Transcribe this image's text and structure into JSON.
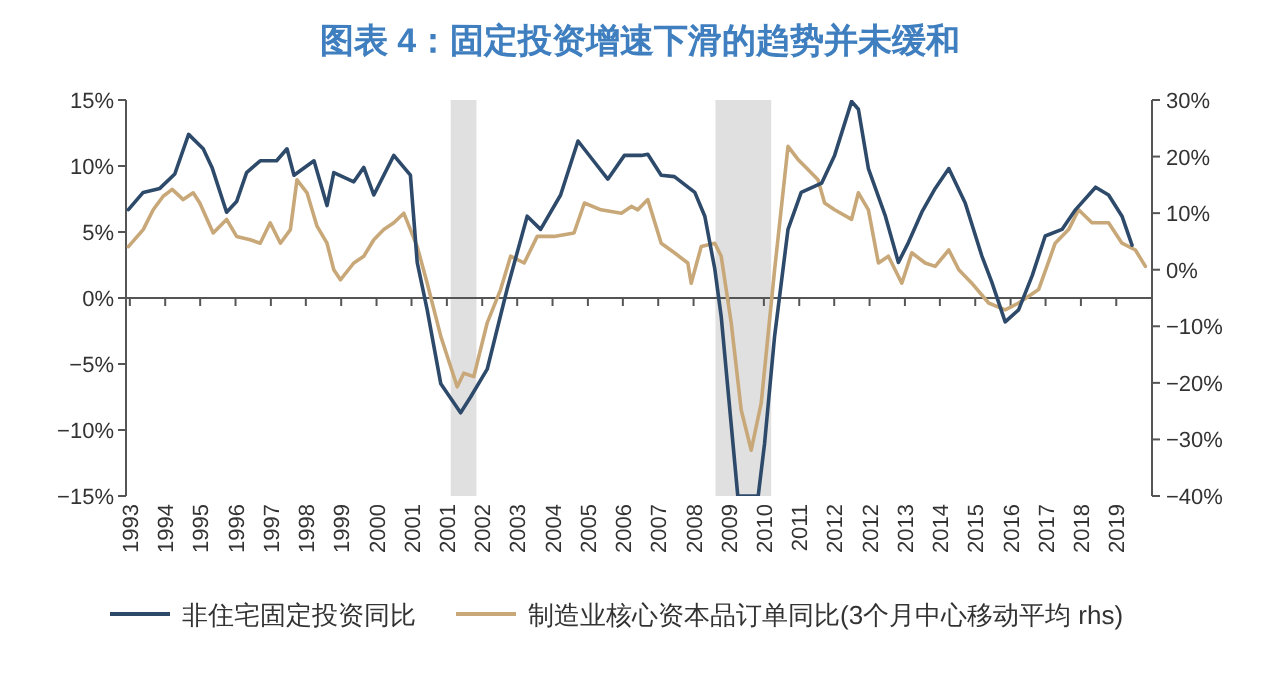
{
  "chart_data": {
    "type": "line",
    "title": "图表 4：固定投资增速下滑的趋势并未缓和",
    "xlim": [
      1993.1,
      2019.8
    ],
    "xticks": [
      {
        "value": 1993.2,
        "label": "1993"
      },
      {
        "value": 1994.12,
        "label": "1994"
      },
      {
        "value": 1995.03,
        "label": "1995"
      },
      {
        "value": 1995.95,
        "label": "1996"
      },
      {
        "value": 1996.87,
        "label": "1997"
      },
      {
        "value": 1997.78,
        "label": "1998"
      },
      {
        "value": 1998.7,
        "label": "1999"
      },
      {
        "value": 1999.62,
        "label": "2000"
      },
      {
        "value": 2000.53,
        "label": "2001"
      },
      {
        "value": 2001.45,
        "label": "2001"
      },
      {
        "value": 2002.37,
        "label": "2002"
      },
      {
        "value": 2003.28,
        "label": "2003"
      },
      {
        "value": 2004.2,
        "label": "2004"
      },
      {
        "value": 2005.12,
        "label": "2005"
      },
      {
        "value": 2006.03,
        "label": "2006"
      },
      {
        "value": 2006.95,
        "label": "2007"
      },
      {
        "value": 2007.87,
        "label": "2008"
      },
      {
        "value": 2008.78,
        "label": "2009"
      },
      {
        "value": 2009.7,
        "label": "2010"
      },
      {
        "value": 2010.62,
        "label": "2011"
      },
      {
        "value": 2011.53,
        "label": "2012"
      },
      {
        "value": 2012.45,
        "label": "2012"
      },
      {
        "value": 2013.37,
        "label": "2013"
      },
      {
        "value": 2014.28,
        "label": "2014"
      },
      {
        "value": 2015.2,
        "label": "2015"
      },
      {
        "value": 2016.12,
        "label": "2016"
      },
      {
        "value": 2017.03,
        "label": "2017"
      },
      {
        "value": 2017.95,
        "label": "2018"
      },
      {
        "value": 2018.87,
        "label": "2019"
      }
    ],
    "ylim": [
      -15,
      15
    ],
    "yticks": [
      {
        "value": -15,
        "label": "−15%"
      },
      {
        "value": -10,
        "label": "−10%"
      },
      {
        "value": -5,
        "label": "−5%"
      },
      {
        "value": 0,
        "label": "0%"
      },
      {
        "value": 5,
        "label": "5%"
      },
      {
        "value": 10,
        "label": "10%"
      },
      {
        "value": 15,
        "label": "15%"
      }
    ],
    "y2lim": [
      -40,
      30
    ],
    "y2ticks": [
      {
        "value": -40,
        "label": "−40%"
      },
      {
        "value": -30,
        "label": "−30%"
      },
      {
        "value": -20,
        "label": "−20%"
      },
      {
        "value": -10,
        "label": "−10%"
      },
      {
        "value": 0,
        "label": "0%"
      },
      {
        "value": 10,
        "label": "10%"
      },
      {
        "value": 20,
        "label": "20%"
      },
      {
        "value": 30,
        "label": "30%"
      }
    ],
    "bands": [
      {
        "axis": "x",
        "from": 2001.55,
        "to": 2002.22,
        "color": "#e0e0e0"
      },
      {
        "axis": "x",
        "from": 2008.44,
        "to": 2009.89,
        "color": "#e0e0e0"
      }
    ],
    "ref_lines": [
      {
        "axis": "y",
        "value": 0,
        "color": "#555555"
      }
    ],
    "legend": "bottom",
    "grid": false,
    "marker": "none",
    "line_style": "solid",
    "series": [
      {
        "name": "非住宅固定投资同比",
        "color": "#2e4a6b",
        "x": [
          1993.16,
          1993.55,
          1993.98,
          1994.37,
          1994.73,
          1995.11,
          1995.34,
          1995.72,
          1995.98,
          1996.24,
          1996.59,
          1997.02,
          1997.29,
          1997.47,
          1997.99,
          1998.33,
          1998.51,
          1999.03,
          1999.29,
          1999.55,
          2000.07,
          2000.5,
          2000.68,
          2000.94,
          2001.29,
          2001.81,
          2002.07,
          2002.5,
          2003.02,
          2003.54,
          2003.89,
          2004.41,
          2004.86,
          2005.29,
          2005.64,
          2006.07,
          2006.51,
          2006.68,
          2007.03,
          2007.37,
          2007.9,
          2008.16,
          2008.42,
          2008.59,
          2009.02,
          2009.55,
          2009.72,
          2009.98,
          2010.33,
          2010.67,
          2011.2,
          2011.54,
          2011.98,
          2012.16,
          2012.42,
          2012.86,
          2013.2,
          2013.46,
          2013.81,
          2014.16,
          2014.51,
          2014.94,
          2015.37,
          2015.63,
          2015.98,
          2016.33,
          2016.68,
          2017.02,
          2017.46,
          2017.81,
          2018.33,
          2018.67,
          2019.02,
          2019.28
        ],
        "values": [
          6.7,
          8.0,
          8.3,
          9.4,
          12.4,
          11.3,
          9.9,
          6.5,
          7.3,
          9.5,
          10.4,
          10.4,
          11.3,
          9.3,
          10.4,
          7.0,
          9.5,
          8.8,
          9.9,
          7.8,
          10.8,
          9.3,
          2.7,
          -0.9,
          -6.5,
          -8.7,
          -7.5,
          -5.4,
          0.7,
          6.2,
          5.2,
          7.8,
          11.9,
          10.3,
          9.0,
          10.8,
          10.8,
          10.9,
          9.3,
          9.2,
          8.0,
          6.2,
          2.2,
          -1.4,
          -15,
          -15,
          -11.0,
          -2.9,
          5.2,
          8.0,
          8.7,
          10.8,
          14.9,
          14.3,
          9.8,
          6.2,
          2.7,
          4.2,
          6.5,
          8.3,
          9.8,
          7.2,
          3.2,
          1.2,
          -1.8,
          -0.9,
          1.7,
          4.7,
          5.2,
          6.7,
          8.4,
          7.8,
          6.2,
          4.0
        ]
      },
      {
        "name": "制造业核心资本品订单同比(3个月中心移动平均 rhs)",
        "color": "#c8a878",
        "axis": "y2",
        "x": [
          1993.16,
          1993.55,
          1993.81,
          1994.07,
          1994.3,
          1994.59,
          1994.85,
          1995.02,
          1995.37,
          1995.72,
          1995.98,
          1996.33,
          1996.59,
          1996.85,
          1997.12,
          1997.38,
          1997.55,
          1997.81,
          1998.07,
          1998.33,
          1998.51,
          1998.68,
          1999.03,
          1999.29,
          1999.55,
          1999.81,
          2000.07,
          2000.33,
          2000.68,
          2000.94,
          2001.29,
          2001.72,
          2001.89,
          2002.15,
          2002.5,
          2002.85,
          2003.11,
          2003.46,
          2003.8,
          2004.24,
          2004.76,
          2005.03,
          2005.46,
          2005.99,
          2006.25,
          2006.42,
          2006.68,
          2007.03,
          2007.37,
          2007.72,
          2007.81,
          2008.07,
          2008.42,
          2008.59,
          2008.85,
          2009.11,
          2009.37,
          2009.63,
          2009.98,
          2010.33,
          2010.59,
          2010.85,
          2011.11,
          2011.28,
          2011.54,
          2011.98,
          2012.16,
          2012.42,
          2012.68,
          2012.94,
          2013.29,
          2013.55,
          2013.9,
          2014.16,
          2014.51,
          2014.77,
          2015.11,
          2015.55,
          2015.98,
          2016.33,
          2016.85,
          2017.28,
          2017.63,
          2017.89,
          2018.24,
          2018.67,
          2019.02,
          2019.37,
          2019.63
        ],
        "values": [
          4.1,
          7.1,
          10.6,
          13.0,
          14.2,
          12.4,
          13.6,
          11.8,
          6.5,
          8.9,
          5.9,
          5.3,
          4.7,
          8.3,
          4.7,
          7.1,
          15.9,
          13.6,
          7.7,
          4.7,
          0,
          -1.8,
          1.2,
          2.4,
          5.3,
          7.1,
          8.3,
          10.0,
          4.1,
          -2.4,
          -11.8,
          -20.7,
          -18.3,
          -18.9,
          -9.4,
          -3.5,
          2.4,
          1.2,
          5.9,
          5.9,
          6.5,
          11.8,
          10.6,
          10.0,
          11.2,
          10.6,
          12.4,
          4.7,
          3.0,
          1.2,
          -2.4,
          4.1,
          4.7,
          2.4,
          -9.4,
          -24.8,
          -31.9,
          -23.6,
          0,
          21.8,
          19.5,
          17.7,
          15.9,
          11.8,
          10.6,
          8.9,
          13.6,
          10.6,
          1.2,
          2.4,
          -2.4,
          3.0,
          1.2,
          0.6,
          3.5,
          0,
          -2.4,
          -5.9,
          -7.1,
          -5.9,
          -3.5,
          4.7,
          7.1,
          10.6,
          8.3,
          8.3,
          4.7,
          3.5,
          0.6
        ]
      }
    ]
  }
}
